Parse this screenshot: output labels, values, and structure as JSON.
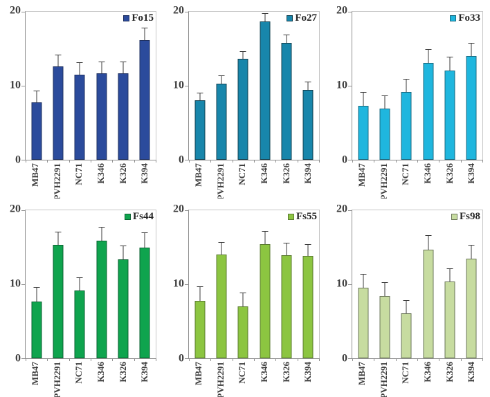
{
  "figure": {
    "y_axis": {
      "ticks": [
        "20",
        "10",
        "0"
      ],
      "min": 0,
      "max": 20
    },
    "categories": [
      "MB47",
      "PVH2291",
      "NC71",
      "K346",
      "K326",
      "K394"
    ]
  },
  "chart_data": [
    {
      "type": "bar",
      "legend": "Fo15",
      "categories": [
        "MB47",
        "PVH2291",
        "NC71",
        "K346",
        "K326",
        "K394"
      ],
      "values": [
        7.8,
        12.6,
        11.5,
        11.7,
        11.7,
        16.2
      ],
      "errors": [
        1.5,
        1.5,
        1.6,
        1.5,
        1.5,
        1.6
      ],
      "ylim": [
        0,
        20
      ],
      "fill": "#2B4B9C",
      "border": "#1F3060"
    },
    {
      "type": "bar",
      "legend": "Fo27",
      "categories": [
        "MB47",
        "PVH2291",
        "NC71",
        "K346",
        "K326",
        "K394"
      ],
      "values": [
        8.0,
        10.3,
        13.6,
        18.7,
        15.8,
        9.4
      ],
      "errors": [
        1.0,
        1.0,
        1.0,
        1.0,
        1.0,
        1.1
      ],
      "ylim": [
        0,
        20
      ],
      "fill": "#1886AB",
      "border": "#14404F"
    },
    {
      "type": "bar",
      "legend": "Fo33",
      "categories": [
        "MB47",
        "PVH2291",
        "NC71",
        "K346",
        "K326",
        "K394"
      ],
      "values": [
        7.3,
        6.9,
        9.2,
        13.1,
        12.1,
        14.0
      ],
      "errors": [
        1.8,
        1.7,
        1.6,
        1.8,
        1.7,
        1.7
      ],
      "ylim": [
        0,
        20
      ],
      "fill": "#1FB6DE",
      "border": "#1A6A80"
    },
    {
      "type": "bar",
      "legend": "Fs44",
      "categories": [
        "MB47",
        "PVH2291",
        "NC71",
        "K346",
        "K326",
        "K394"
      ],
      "values": [
        7.7,
        15.3,
        9.2,
        15.9,
        13.4,
        15.0
      ],
      "errors": [
        1.8,
        1.7,
        1.6,
        1.8,
        1.7,
        1.9
      ],
      "ylim": [
        0,
        20
      ],
      "fill": "#0FA44E",
      "border": "#0A6130"
    },
    {
      "type": "bar",
      "legend": "Fs55",
      "categories": [
        "MB47",
        "PVH2291",
        "NC71",
        "K346",
        "K326",
        "K394"
      ],
      "values": [
        7.8,
        14.0,
        7.0,
        15.4,
        13.9,
        13.8
      ],
      "errors": [
        1.8,
        1.6,
        1.8,
        1.7,
        1.6,
        1.5
      ],
      "ylim": [
        0,
        20
      ],
      "fill": "#8CC541",
      "border": "#5B7A31"
    },
    {
      "type": "bar",
      "legend": "Fs98",
      "categories": [
        "MB47",
        "PVH2291",
        "NC71",
        "K346",
        "K326",
        "K394"
      ],
      "values": [
        9.5,
        8.4,
        6.1,
        14.7,
        10.4,
        13.5
      ],
      "errors": [
        1.8,
        1.8,
        1.7,
        1.8,
        1.7,
        1.7
      ],
      "ylim": [
        0,
        20
      ],
      "fill": "#C7DCA0",
      "border": "#6A7558"
    }
  ]
}
